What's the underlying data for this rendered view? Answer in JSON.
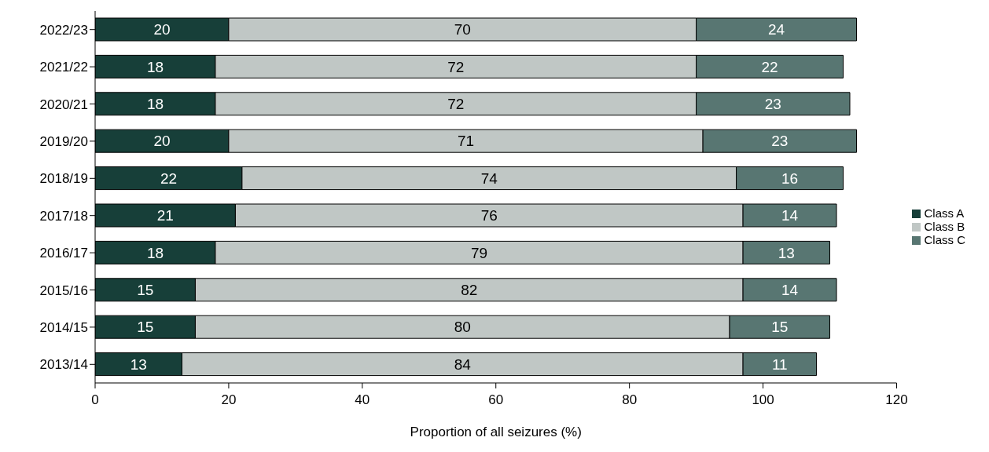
{
  "chart_data": {
    "type": "bar",
    "orientation": "horizontal",
    "stacked": true,
    "data_labels": true,
    "legend": "right",
    "grid": false,
    "xlabel": "Proportion of all seizures (%)",
    "categories": [
      "2022/23",
      "2021/22",
      "2020/21",
      "2019/20",
      "2018/19",
      "2017/18",
      "2016/17",
      "2015/16",
      "2014/15",
      "2013/14"
    ],
    "xlim": [
      0,
      120
    ],
    "xticks": [
      0,
      20,
      40,
      60,
      80,
      100,
      120
    ],
    "series": [
      {
        "name": "Class A",
        "color": "#173f39",
        "values": [
          20,
          18,
          18,
          20,
          22,
          21,
          18,
          15,
          15,
          13
        ]
      },
      {
        "name": "Class B",
        "color": "#c0c7c5",
        "values": [
          70,
          72,
          72,
          71,
          74,
          76,
          79,
          82,
          80,
          84
        ]
      },
      {
        "name": "Class C",
        "color": "#587672",
        "values": [
          24,
          22,
          23,
          23,
          16,
          14,
          13,
          14,
          15,
          11
        ]
      }
    ]
  }
}
